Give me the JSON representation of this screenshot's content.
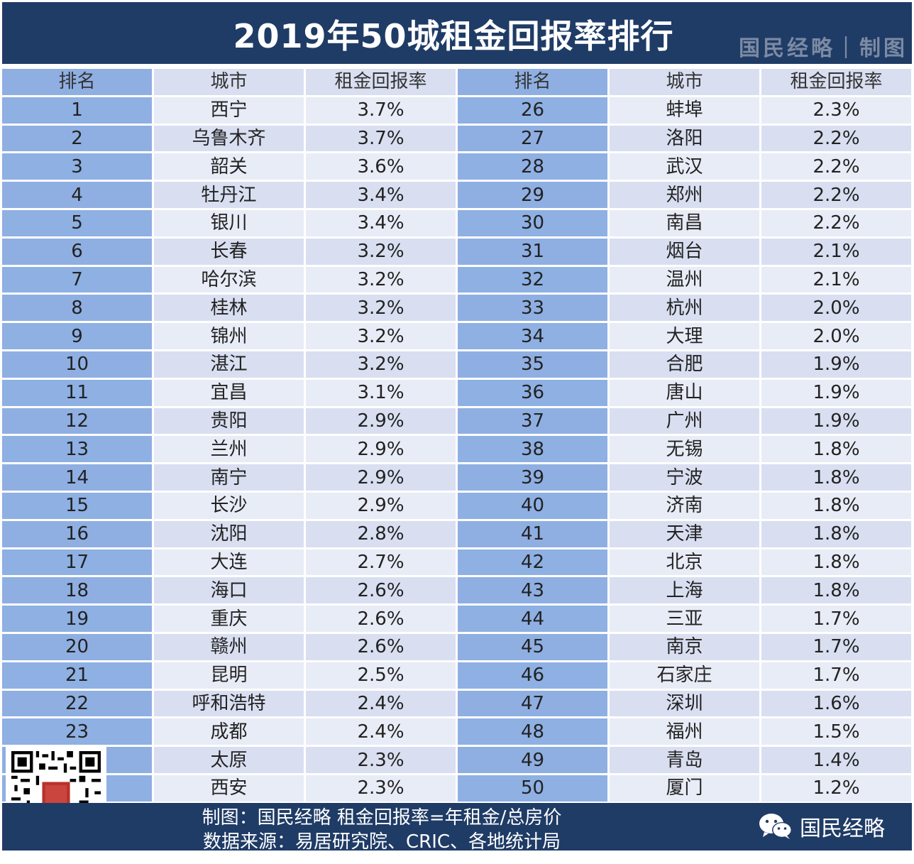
{
  "header": {
    "title": "2019年50城租金回报率排行",
    "brand": "国民经略｜制图"
  },
  "table": {
    "columns": [
      "排名",
      "城市",
      "租金回报率",
      "排名",
      "城市",
      "租金回报率"
    ],
    "left": [
      {
        "rank": "1",
        "city": "西宁",
        "rate": "3.7%"
      },
      {
        "rank": "2",
        "city": "乌鲁木齐",
        "rate": "3.7%"
      },
      {
        "rank": "3",
        "city": "韶关",
        "rate": "3.6%"
      },
      {
        "rank": "4",
        "city": "牡丹江",
        "rate": "3.4%"
      },
      {
        "rank": "5",
        "city": "银川",
        "rate": "3.4%"
      },
      {
        "rank": "6",
        "city": "长春",
        "rate": "3.2%"
      },
      {
        "rank": "7",
        "city": "哈尔滨",
        "rate": "3.2%"
      },
      {
        "rank": "8",
        "city": "桂林",
        "rate": "3.2%"
      },
      {
        "rank": "9",
        "city": "锦州",
        "rate": "3.2%"
      },
      {
        "rank": "10",
        "city": "湛江",
        "rate": "3.2%"
      },
      {
        "rank": "11",
        "city": "宜昌",
        "rate": "3.1%"
      },
      {
        "rank": "12",
        "city": "贵阳",
        "rate": "2.9%"
      },
      {
        "rank": "13",
        "city": "兰州",
        "rate": "2.9%"
      },
      {
        "rank": "14",
        "city": "南宁",
        "rate": "2.9%"
      },
      {
        "rank": "15",
        "city": "长沙",
        "rate": "2.9%"
      },
      {
        "rank": "16",
        "city": "沈阳",
        "rate": "2.8%"
      },
      {
        "rank": "17",
        "city": "大连",
        "rate": "2.7%"
      },
      {
        "rank": "18",
        "city": "海口",
        "rate": "2.6%"
      },
      {
        "rank": "19",
        "city": "重庆",
        "rate": "2.6%"
      },
      {
        "rank": "20",
        "city": "赣州",
        "rate": "2.6%"
      },
      {
        "rank": "21",
        "city": "昆明",
        "rate": "2.5%"
      },
      {
        "rank": "22",
        "city": "呼和浩特",
        "rate": "2.4%"
      },
      {
        "rank": "23",
        "city": "成都",
        "rate": "2.4%"
      },
      {
        "rank": "",
        "city": "太原",
        "rate": "2.3%"
      },
      {
        "rank": "",
        "city": "西安",
        "rate": "2.3%"
      }
    ],
    "right": [
      {
        "rank": "26",
        "city": "蚌埠",
        "rate": "2.3%"
      },
      {
        "rank": "27",
        "city": "洛阳",
        "rate": "2.2%"
      },
      {
        "rank": "28",
        "city": "武汉",
        "rate": "2.2%"
      },
      {
        "rank": "29",
        "city": "郑州",
        "rate": "2.2%"
      },
      {
        "rank": "30",
        "city": "南昌",
        "rate": "2.2%"
      },
      {
        "rank": "31",
        "city": "烟台",
        "rate": "2.1%"
      },
      {
        "rank": "32",
        "city": "温州",
        "rate": "2.1%"
      },
      {
        "rank": "33",
        "city": "杭州",
        "rate": "2.0%"
      },
      {
        "rank": "34",
        "city": "大理",
        "rate": "2.0%"
      },
      {
        "rank": "35",
        "city": "合肥",
        "rate": "1.9%"
      },
      {
        "rank": "36",
        "city": "唐山",
        "rate": "1.9%"
      },
      {
        "rank": "37",
        "city": "广州",
        "rate": "1.9%"
      },
      {
        "rank": "38",
        "city": "无锡",
        "rate": "1.8%"
      },
      {
        "rank": "39",
        "city": "宁波",
        "rate": "1.8%"
      },
      {
        "rank": "40",
        "city": "济南",
        "rate": "1.8%"
      },
      {
        "rank": "41",
        "city": "天津",
        "rate": "1.8%"
      },
      {
        "rank": "42",
        "city": "北京",
        "rate": "1.8%"
      },
      {
        "rank": "43",
        "city": "上海",
        "rate": "1.8%"
      },
      {
        "rank": "44",
        "city": "三亚",
        "rate": "1.7%"
      },
      {
        "rank": "45",
        "city": "南京",
        "rate": "1.7%"
      },
      {
        "rank": "46",
        "city": "石家庄",
        "rate": "1.7%"
      },
      {
        "rank": "47",
        "city": "深圳",
        "rate": "1.6%"
      },
      {
        "rank": "48",
        "city": "福州",
        "rate": "1.5%"
      },
      {
        "rank": "49",
        "city": "青岛",
        "rate": "1.4%"
      },
      {
        "rank": "50",
        "city": "厦门",
        "rate": "1.2%"
      }
    ]
  },
  "footer": {
    "line1": "制图：国民经略  租金回报率=年租金/总房价",
    "line2": "数据来源：易居研究院、CRIC、各地统计局",
    "wechat_name": "国民经略",
    "wechat_icon": "wechat-icon",
    "qr_icon": "qr-code-icon"
  },
  "colors": {
    "header_bg": "#1f3c66",
    "rank_cell": "#8fafe2",
    "row_a": "#d9dff1",
    "row_b": "#e8ecf6"
  }
}
